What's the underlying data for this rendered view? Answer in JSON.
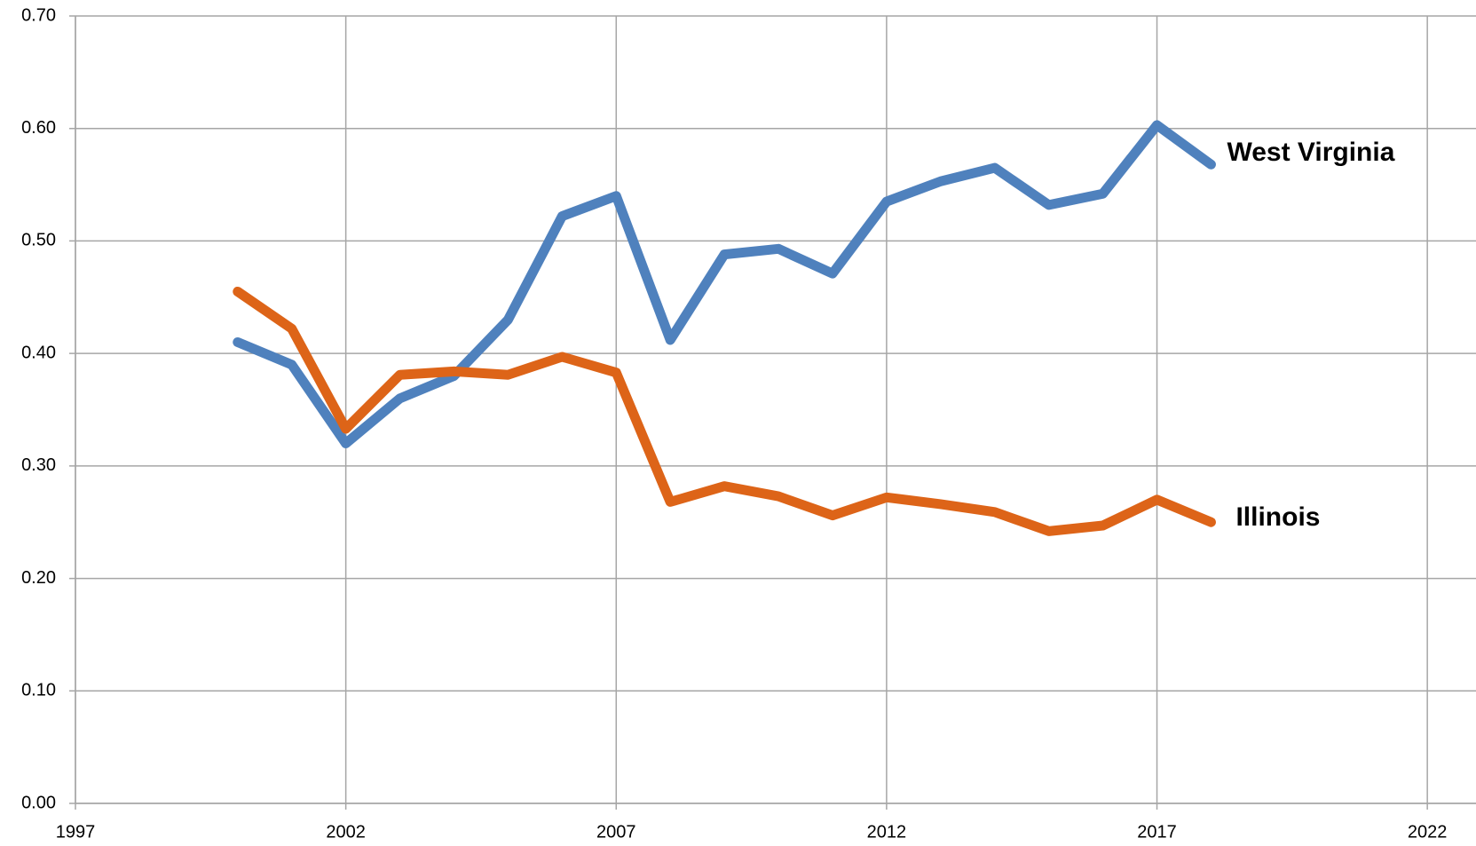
{
  "chart_data": {
    "type": "line",
    "x": [
      2000,
      2001,
      2002,
      2003,
      2004,
      2005,
      2006,
      2007,
      2008,
      2009,
      2010,
      2011,
      2012,
      2013,
      2014,
      2015,
      2016,
      2017,
      2018
    ],
    "series": [
      {
        "name": "West Virginia",
        "color": "#4f81bd",
        "values": [
          0.41,
          0.39,
          0.32,
          0.36,
          0.38,
          0.43,
          0.522,
          0.54,
          0.412,
          0.488,
          0.493,
          0.471,
          0.535,
          0.553,
          0.565,
          0.532,
          0.542,
          0.603,
          0.568
        ]
      },
      {
        "name": "Illinois",
        "color": "#dd6418",
        "values": [
          0.455,
          0.422,
          0.333,
          0.381,
          0.384,
          0.381,
          0.397,
          0.383,
          0.268,
          0.282,
          0.273,
          0.256,
          0.272,
          0.266,
          0.259,
          0.242,
          0.247,
          0.27,
          0.25
        ]
      }
    ],
    "xlim": [
      1997,
      2022.9
    ],
    "xticks": [
      1997,
      2002,
      2007,
      2012,
      2017,
      2022
    ],
    "ylim": [
      0,
      0.7
    ],
    "yticks": [
      {
        "value": 0,
        "label": "0.00"
      },
      {
        "value": 0.1,
        "label": "0.10"
      },
      {
        "value": 0.2,
        "label": "0.20"
      },
      {
        "value": 0.3,
        "label": "0.30"
      },
      {
        "value": 0.4,
        "label": "0.40"
      },
      {
        "value": 0.5,
        "label": "0.50"
      },
      {
        "value": 0.6,
        "label": "0.60"
      },
      {
        "value": 0.7,
        "label": "0.70"
      }
    ],
    "grid": true
  }
}
